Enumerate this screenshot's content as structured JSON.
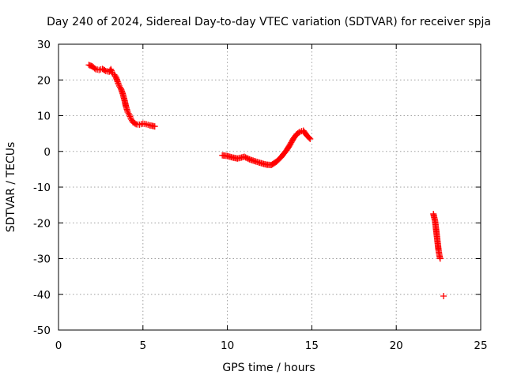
{
  "chart_data": {
    "type": "scatter",
    "title": "Day 240 of 2024, Sidereal Day-to-day VTEC variation (SDTVAR) for receiver spja",
    "xlabel": "GPS time / hours",
    "ylabel": "SDTVAR / TECUs",
    "xlim": [
      0,
      25
    ],
    "ylim": [
      -50,
      30
    ],
    "xticks": [
      0,
      5,
      10,
      15,
      20,
      25
    ],
    "yticks": [
      -50,
      -40,
      -30,
      -20,
      -10,
      0,
      10,
      20,
      30
    ],
    "grid": true,
    "marker": "+",
    "color": "#ff0000",
    "series": [
      {
        "name": "SDTVAR",
        "segments": [
          [
            [
              1.8,
              24.2
            ],
            [
              2.0,
              23.8
            ],
            [
              2.2,
              23.0
            ],
            [
              2.4,
              22.8
            ],
            [
              2.6,
              23.1
            ],
            [
              2.8,
              22.5
            ],
            [
              3.0,
              22.3
            ],
            [
              3.1,
              23.0
            ],
            [
              3.2,
              21.8
            ],
            [
              3.3,
              21.5
            ],
            [
              3.4,
              20.8
            ],
            [
              3.5,
              19.5
            ],
            [
              3.6,
              18.3
            ],
            [
              3.7,
              17.5
            ],
            [
              3.8,
              16.2
            ],
            [
              3.9,
              14.5
            ],
            [
              4.0,
              12.5
            ],
            [
              4.1,
              11.0
            ],
            [
              4.2,
              10.2
            ],
            [
              4.3,
              9.0
            ],
            [
              4.4,
              8.2
            ],
            [
              4.6,
              7.6
            ],
            [
              4.8,
              7.5
            ],
            [
              5.0,
              7.8
            ],
            [
              5.2,
              7.6
            ],
            [
              5.4,
              7.3
            ],
            [
              5.7,
              7.0
            ]
          ],
          [
            [
              9.7,
              -1.1
            ],
            [
              10.0,
              -1.3
            ],
            [
              10.3,
              -1.7
            ],
            [
              10.6,
              -2.0
            ],
            [
              11.0,
              -1.5
            ],
            [
              11.3,
              -2.2
            ],
            [
              11.6,
              -2.7
            ],
            [
              12.0,
              -3.3
            ],
            [
              12.3,
              -3.7
            ],
            [
              12.6,
              -3.8
            ],
            [
              12.9,
              -2.9
            ],
            [
              13.2,
              -1.5
            ],
            [
              13.5,
              0.3
            ],
            [
              13.7,
              1.8
            ],
            [
              13.9,
              3.5
            ],
            [
              14.1,
              4.8
            ],
            [
              14.3,
              5.5
            ],
            [
              14.5,
              5.8
            ],
            [
              14.7,
              4.5
            ],
            [
              14.9,
              3.5
            ]
          ],
          [
            [
              22.2,
              -17.5
            ],
            [
              22.3,
              -19.5
            ],
            [
              22.35,
              -21.5
            ],
            [
              22.4,
              -23.5
            ],
            [
              22.45,
              -25.5
            ],
            [
              22.5,
              -27.5
            ],
            [
              22.55,
              -29.0
            ],
            [
              22.6,
              -30.0
            ],
            [
              22.8,
              -40.5
            ]
          ]
        ]
      }
    ]
  }
}
